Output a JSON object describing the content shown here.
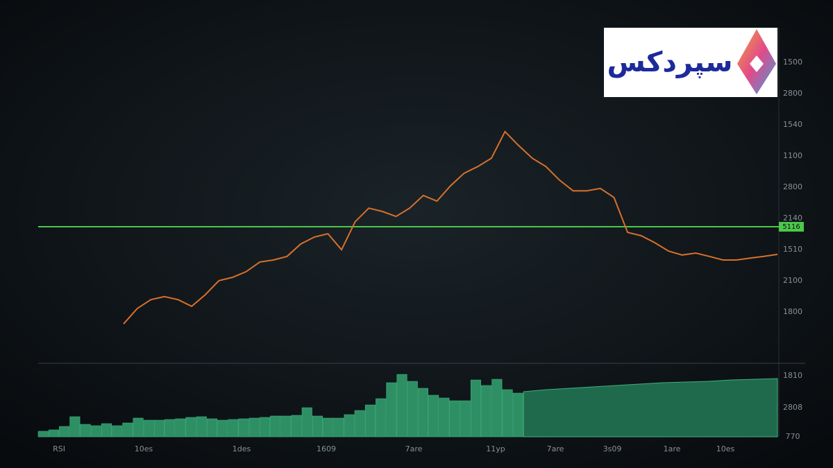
{
  "logo": {
    "text": "سپردکس"
  },
  "chart_data": [
    {
      "type": "line",
      "color": "#d9702a",
      "ylim": [
        0,
        100
      ],
      "values": [
        11.0,
        15.6,
        18.3,
        19.2,
        18.3,
        16.3,
        19.8,
        24.0,
        25.0,
        26.7,
        29.6,
        30.2,
        31.3,
        35.0,
        37.1,
        38.1,
        33.3,
        41.7,
        45.8,
        44.8,
        43.3,
        45.8,
        49.6,
        47.9,
        52.5,
        56.3,
        58.3,
        60.8,
        68.8,
        64.6,
        60.8,
        58.3,
        54.2,
        51.0,
        51.0,
        51.7,
        49.0,
        38.5,
        37.5,
        35.4,
        32.9,
        31.7,
        32.3,
        31.3,
        30.2,
        30.2,
        30.8,
        31.3,
        31.9
      ],
      "level": 40.2,
      "level_color": "#4cc84a",
      "level_label": "5116",
      "y_labels": [
        "1500",
        "2800",
        "1540",
        "1100",
        "2800",
        "2140",
        "1510",
        "2100",
        "1800"
      ],
      "x_labels": [
        "10es",
        "1des",
        "1609",
        "7are",
        "11yp",
        "7are",
        "3s09",
        "1are",
        "10es"
      ]
    },
    {
      "type": "bar",
      "color": "#2e8f64",
      "ylim": [
        0,
        100
      ],
      "values": [
        8,
        10,
        15,
        29,
        18,
        16,
        19,
        16,
        20,
        27,
        24,
        24,
        25,
        26,
        28,
        29,
        26,
        24,
        25,
        26,
        27,
        28,
        30,
        30,
        31,
        42,
        30,
        27,
        27,
        32,
        38,
        46,
        55,
        78,
        90,
        80,
        70,
        60,
        56,
        52,
        52,
        82,
        74,
        83,
        68,
        63
      ],
      "area_values": [
        65,
        68,
        70,
        72,
        74,
        76,
        78,
        79,
        80,
        82,
        83,
        84
      ],
      "axis_title": "RSI",
      "y_labels": [
        "1810",
        "2808",
        "770"
      ]
    }
  ]
}
